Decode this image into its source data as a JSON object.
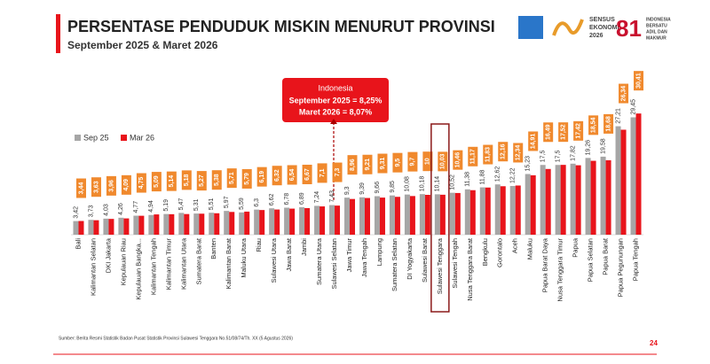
{
  "chart_data": {
    "type": "bar",
    "title": "PERSENTASE PENDUDUK MISKIN MENURUT PROVINSI",
    "subtitle": "September 2025 & Maret 2026",
    "logo_texts": [
      "SENSUS",
      "EKONOMI",
      "2026",
      "INDONESIA",
      "BERSATU",
      "ADIL DAN",
      "MAKMUR"
    ],
    "callout": {
      "title": "Indonesia",
      "line1": "September 2025 = 8,25%",
      "line2": "Maret 2026 = 8,07%"
    },
    "source": "Sumber: Berita Resmi Statistik Badan Pusat Statistik Provinsi Sulawesi Tenggara No.51/08/74/Th. XX (5 Agustus 2026)",
    "page": "24",
    "highlight": "Sulawesi Tenggara",
    "ylim": [
      0,
      30
    ],
    "categories": [
      "Bali",
      "Kalimantan Selatan",
      "DKI Jakarta",
      "Kepulauan Riau",
      "Kepulauan Bangka...",
      "Kalimantan Tengah",
      "Kalimantan Timur",
      "Kalimantan Utara",
      "Sumatera Barat",
      "Banten",
      "Kalimantan Barat",
      "Maluku Utara",
      "Riau",
      "Sulawesi Utara",
      "Jawa Barat",
      "Jambi",
      "Sumatera Utara",
      "Sulawesi Selatan",
      "Jawa Timur",
      "Jawa Tengah",
      "Lampung",
      "Sumatera Selatan",
      "DI Yogyakarta",
      "Sulawesi Barat",
      "Sulawesi Tenggara",
      "Sulawesi Tengah",
      "Nusa Tenggara Barat",
      "Bengkulu",
      "Gorontalo",
      "Aceh",
      "Maluku",
      "Papua Barat Daya",
      "Nusa Tenggara Timur",
      "Papua",
      "Papua Selatan",
      "Papua Barat",
      "Papua Pegunungan",
      "Papua Tengah"
    ],
    "series": [
      {
        "name": "Sep 25",
        "color": "#a6a6a6",
        "values": [
          3.42,
          3.73,
          4.03,
          4.26,
          4.77,
          4.94,
          5.19,
          5.47,
          5.31,
          5.51,
          5.97,
          5.59,
          6.3,
          6.62,
          6.78,
          6.89,
          7.24,
          7.43,
          9.3,
          9.39,
          9.66,
          9.85,
          10.08,
          10.18,
          10.14,
          10.52,
          11.38,
          11.88,
          12.62,
          12.22,
          15.23,
          17.5,
          17.5,
          17.82,
          19.26,
          19.58,
          27.21,
          29.45
        ],
        "value_labels": [
          "3,42",
          "3,73",
          "4,03",
          "4,26",
          "4,77",
          "4,94",
          "5,19",
          "5,47",
          "5,31",
          "5,51",
          "5,97",
          "5,59",
          "6,3",
          "6,62",
          "6,78",
          "6,89",
          "7,24",
          "7,43",
          "9,3",
          "9,39",
          "9,66",
          "9,85",
          "10,08",
          "10,18",
          "10,14",
          "10,52",
          "11,38",
          "11,88",
          "12,62",
          "12,22",
          "15,23",
          "17,5",
          "17,5",
          "17,82",
          "19,26",
          "19,58",
          "27,21",
          "29,45"
        ]
      },
      {
        "name": "Mar 26",
        "color": "#e8141b",
        "label_color": "#f0892d",
        "values": [
          3.44,
          3.63,
          3.96,
          4.09,
          4.75,
          5.09,
          5.14,
          5.18,
          5.27,
          5.38,
          5.71,
          5.79,
          6.19,
          6.32,
          6.54,
          6.67,
          7.1,
          7.3,
          8.96,
          9.21,
          9.31,
          9.5,
          9.7,
          10,
          10.03,
          10.46,
          11.17,
          11.83,
          12.16,
          12.34,
          14.91,
          16.49,
          17.52,
          17.42,
          18.54,
          18.68,
          26.34,
          30.41
        ],
        "value_labels": [
          "3,44",
          "3,63",
          "3,96",
          "4,09",
          "4,75",
          "5,09",
          "5,14",
          "5,18",
          "5,27",
          "5,38",
          "5,71",
          "5,79",
          "6,19",
          "6,32",
          "6,54",
          "6,67",
          "7,1",
          "7,3",
          "8,96",
          "9,21",
          "9,31",
          "9,5",
          "9,7",
          "10",
          "10,03",
          "10,46",
          "11,17",
          "11,83",
          "12,16",
          "12,34",
          "14,91",
          "16,49",
          "17,52",
          "17,42",
          "18,54",
          "18,68",
          "26,34",
          "30,41"
        ]
      }
    ]
  }
}
